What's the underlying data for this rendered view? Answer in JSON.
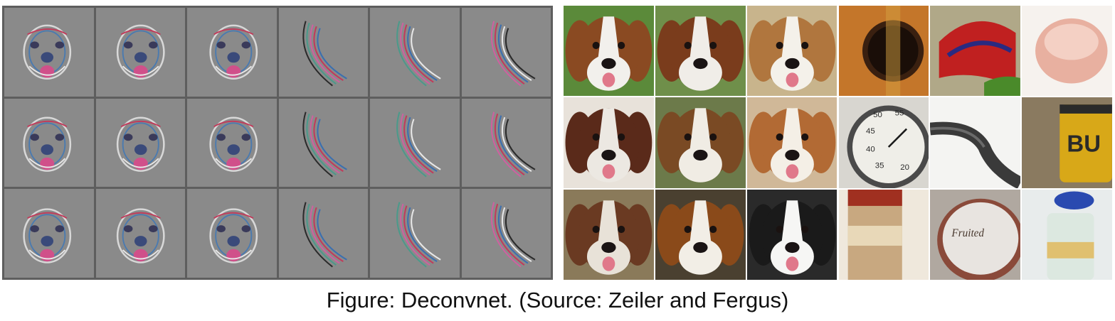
{
  "figure": {
    "caption": "Figure: Deconvnet. (Source: Zeiler and Fergus)",
    "left_panel": {
      "rows": 3,
      "cols": 6,
      "background": "#8a8a8a",
      "divider_color": "#5e5e5e",
      "tiles": [
        {
          "kind": "face"
        },
        {
          "kind": "face"
        },
        {
          "kind": "face"
        },
        {
          "kind": "curve"
        },
        {
          "kind": "curve"
        },
        {
          "kind": "curve"
        },
        {
          "kind": "face"
        },
        {
          "kind": "face"
        },
        {
          "kind": "face"
        },
        {
          "kind": "curve"
        },
        {
          "kind": "curve"
        },
        {
          "kind": "curve"
        },
        {
          "kind": "face"
        },
        {
          "kind": "face"
        },
        {
          "kind": "face"
        },
        {
          "kind": "curve"
        },
        {
          "kind": "curve"
        },
        {
          "kind": "curve"
        }
      ]
    },
    "right_panel": {
      "rows": 3,
      "cols": 6,
      "tiles": [
        {
          "kind": "dog",
          "bg": "#5b8a3a",
          "fur": "#8a4a22",
          "light": "#f2f0ec"
        },
        {
          "kind": "dog",
          "bg": "#6f8f4a",
          "fur": "#7a3c1c",
          "light": "#f0ede8"
        },
        {
          "kind": "dog",
          "bg": "#c8b48c",
          "fur": "#b0763e",
          "light": "#f4f1ea"
        },
        {
          "kind": "guitar",
          "bg": "#c4762a"
        },
        {
          "kind": "parrot",
          "bg": "#b0a888"
        },
        {
          "kind": "cup",
          "bg": "#f6f2ee"
        },
        {
          "kind": "dog",
          "bg": "#e8e2da",
          "fur": "#5a2a1a",
          "light": "#ece8e2"
        },
        {
          "kind": "dog",
          "bg": "#6c7a4a",
          "fur": "#7a4a24",
          "light": "#f0ece4"
        },
        {
          "kind": "dog",
          "bg": "#d0b898",
          "fur": "#b26a34",
          "light": "#f4efe6"
        },
        {
          "kind": "gauge",
          "bg": "#d8d6d0",
          "labels": [
            "50",
            "55",
            "45",
            "40",
            "35",
            "20"
          ]
        },
        {
          "kind": "strap",
          "bg": "#f4f4f2"
        },
        {
          "kind": "jar",
          "bg": "#8a7a60",
          "label_text": "BU"
        },
        {
          "kind": "dog",
          "bg": "#8a7a5a",
          "fur": "#6a3a22",
          "light": "#e8e2d8"
        },
        {
          "kind": "dog",
          "bg": "#4a4030",
          "fur": "#8a4a1a",
          "light": "#f2eee6"
        },
        {
          "kind": "dog",
          "bg": "#2a2a2a",
          "fur": "#1a1a1a",
          "light": "#f6f6f4"
        },
        {
          "kind": "can",
          "bg": "#efe8dc"
        },
        {
          "kind": "lid",
          "bg": "#b0a8a0",
          "label_text": "Fruited"
        },
        {
          "kind": "bottle",
          "bg": "#e8ecec"
        }
      ]
    }
  }
}
